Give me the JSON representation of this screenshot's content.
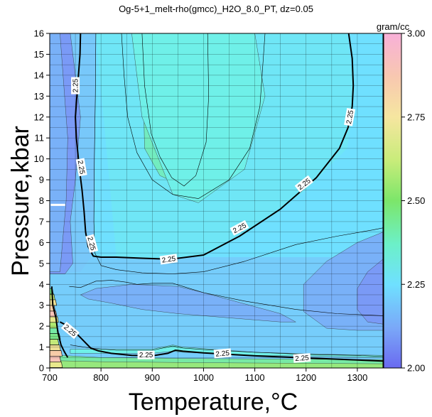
{
  "chart_data": {
    "type": "heatmap",
    "title": "Og-5+1_melt-rho(gmcc)_H2O_8.0_PT, dz=0.05",
    "xlabel": "Temperature,°C",
    "ylabel": "Pressure,kbar",
    "xlim": [
      700,
      1350
    ],
    "ylim": [
      0,
      16
    ],
    "xticks": [
      700,
      800,
      900,
      1000,
      1100,
      1200,
      1300
    ],
    "yticks": [
      0,
      1,
      2,
      3,
      4,
      5,
      6,
      7,
      8,
      9,
      10,
      11,
      12,
      13,
      14,
      15,
      16
    ],
    "grid": true,
    "colorbar": {
      "label": "gram/cc",
      "range": [
        2.0,
        3.0
      ],
      "ticks": [
        2.0,
        2.25,
        2.5,
        2.75,
        3.0
      ],
      "tick_labels": [
        "2.00",
        "2.25",
        "2.50",
        "2.75",
        "3.00"
      ]
    },
    "contour_interval": 0.05,
    "highlighted_contour": 2.25,
    "contour_label_text": "2.25",
    "regions": [
      {
        "level": 2.1,
        "x": [
          700,
          740,
          760,
          750,
          740,
          745,
          730,
          700
        ],
        "y": [
          16,
          16,
          12,
          9,
          7,
          5,
          4.5,
          4.5
        ]
      },
      {
        "level": 2.15,
        "x": [
          700,
          720,
          735,
          732,
          720,
          700
        ],
        "y": [
          16,
          16,
          11,
          8,
          4.6,
          4.6
        ]
      },
      {
        "level": 2.35,
        "x": [
          880,
          910,
          925,
          960,
          990,
          1010,
          985,
          960,
          915,
          885,
          880
        ],
        "y": [
          16,
          16,
          15,
          14,
          12,
          10,
          8.6,
          8.7,
          9.2,
          10.5,
          16
        ]
      },
      {
        "level": 2.3,
        "x": [
          840,
          860,
          880,
          940,
          990,
          1080,
          1120,
          1100,
          1040,
          970,
          900,
          850,
          840
        ],
        "y": [
          16,
          16,
          12,
          8.3,
          7.9,
          9.5,
          13,
          16,
          16,
          16,
          16,
          16,
          16
        ]
      },
      {
        "level": 2.15,
        "x": [
          1350,
          1300,
          1240,
          1195,
          1195,
          1240,
          1300,
          1350
        ],
        "y": [
          6.5,
          6,
          5.1,
          4,
          2.7,
          1.9,
          1.8,
          1.8
        ]
      },
      {
        "level": 2.1,
        "x": [
          1350,
          1320,
          1300,
          1300,
          1320,
          1350
        ],
        "y": [
          5.2,
          4.6,
          3.8,
          2.8,
          2.2,
          2.1
        ]
      },
      {
        "level": 2.15,
        "x": [
          760,
          790,
          860,
          950,
          1000,
          1090,
          1150,
          1180,
          1150,
          1050,
          950,
          880,
          820,
          775,
          760
        ],
        "y": [
          3.5,
          3.8,
          4.0,
          3.9,
          3.6,
          3.0,
          2.6,
          2.2,
          2.2,
          2.4,
          2.6,
          2.8,
          3.1,
          3.3,
          3.5
        ]
      },
      {
        "level": 2.3,
        "x": [
          740,
          800,
          900,
          940,
          960,
          1100,
          1250,
          1350,
          1350,
          1250,
          1100,
          960,
          940,
          900,
          800,
          740
        ],
        "y": [
          0.9,
          0.9,
          0.9,
          1.1,
          1.0,
          0.75,
          0.65,
          0.6,
          0.5,
          0.55,
          0.6,
          0.75,
          0.8,
          0.7,
          0.7,
          0.7
        ]
      },
      {
        "level": 2.4,
        "x": [
          720,
          800,
          1000,
          1350,
          1350,
          1000,
          800,
          720
        ],
        "y": [
          0.6,
          0.5,
          0.45,
          0.4,
          0,
          0,
          0,
          0
        ]
      },
      {
        "level": 2.5,
        "x": [
          710,
          800,
          1000,
          1350,
          1350,
          710
        ],
        "y": [
          0.35,
          0.3,
          0.25,
          0.2,
          0,
          0
        ]
      }
    ],
    "contour_lines": [
      {
        "level": 2.25,
        "highlight": true,
        "x": [
          760,
          759,
          756,
          753,
          750,
          752,
          758,
          763,
          767,
          770,
          775,
          785,
          800,
          830,
          880,
          935,
          1000,
          1070,
          1150,
          1220,
          1265,
          1282,
          1290,
          1292,
          1290,
          1283
        ],
        "y": [
          16,
          15,
          14,
          13,
          12,
          11,
          9.5,
          8.5,
          7.5,
          6.5,
          5.8,
          5.35,
          5.3,
          5.3,
          5.25,
          5.2,
          5.4,
          6.3,
          7.6,
          9.1,
          10.5,
          11.5,
          12.5,
          13.5,
          14.8,
          16
        ]
      },
      {
        "level": 2.25,
        "highlight": true,
        "x": [
          720,
          740,
          760,
          780,
          795,
          820,
          860,
          900,
          930,
          945,
          960,
          1000,
          1100,
          1200,
          1300,
          1350
        ],
        "y": [
          2.2,
          1.95,
          1.45,
          0.95,
          0.82,
          0.7,
          0.6,
          0.58,
          0.7,
          0.85,
          0.8,
          0.72,
          0.58,
          0.48,
          0.38,
          0.33
        ]
      },
      {
        "level": 2.2,
        "highlight": false,
        "x": [
          790,
          789,
          787,
          786,
          788,
          800,
          830,
          880,
          940,
          1000,
          1080,
          1180,
          1260,
          1330,
          1350
        ],
        "y": [
          16,
          13,
          10,
          7,
          5.5,
          4.9,
          4.7,
          4.55,
          4.5,
          4.6,
          5.1,
          5.9,
          6.3,
          6.6,
          6.7
        ]
      },
      {
        "level": 2.2,
        "highlight": false,
        "x": [
          738,
          760,
          790,
          820,
          850,
          870,
          900,
          940,
          960,
          1000,
          1080,
          1180,
          1260,
          1350
        ],
        "y": [
          3.9,
          3.85,
          4.15,
          4.2,
          4.1,
          4.0,
          4.05,
          4.05,
          3.9,
          3.6,
          3.2,
          2.8,
          2.6,
          2.5
        ]
      },
      {
        "level": 2.3,
        "highlight": false,
        "x": [
          840,
          845,
          852,
          870,
          900,
          940,
          990,
          1050,
          1090,
          1110,
          1120
        ],
        "y": [
          16,
          14,
          12,
          10.3,
          9.0,
          8.3,
          8.1,
          9.0,
          10.5,
          12.5,
          16
        ]
      },
      {
        "level": 2.35,
        "highlight": false,
        "x": [
          880,
          885,
          898,
          915,
          938,
          962,
          985,
          1005,
          1010,
          1008
        ],
        "y": [
          16,
          13.5,
          11.2,
          10.1,
          9.1,
          8.7,
          9.2,
          10.8,
          13,
          16
        ]
      },
      {
        "level": 2.3,
        "highlight": false,
        "x": [
          740,
          780,
          830,
          900,
          940,
          960,
          1000,
          1100,
          1200,
          1300,
          1350
        ],
        "y": [
          1.1,
          0.95,
          0.85,
          0.85,
          1.05,
          0.95,
          0.88,
          0.75,
          0.65,
          0.6,
          0.55
        ]
      }
    ],
    "contour_labels": [
      {
        "level": "2.25",
        "x": 750,
        "y": 13.5,
        "angle": -90
      },
      {
        "level": "2.25",
        "x": 762,
        "y": 9.6,
        "angle": 80
      },
      {
        "level": "2.25",
        "x": 782,
        "y": 5.95,
        "angle": 75
      },
      {
        "level": "2.25",
        "x": 932,
        "y": 5.2,
        "angle": -8
      },
      {
        "level": "2.25",
        "x": 1070,
        "y": 6.7,
        "angle": -28
      },
      {
        "level": "2.25",
        "x": 1196,
        "y": 8.8,
        "angle": -38
      },
      {
        "level": "2.25",
        "x": 1285,
        "y": 12.0,
        "angle": -80
      },
      {
        "level": "2.25",
        "x": 740,
        "y": 1.8,
        "angle": 40
      },
      {
        "level": "2.25",
        "x": 888,
        "y": 0.62,
        "angle": 0
      },
      {
        "level": "2.25",
        "x": 1037,
        "y": 0.7,
        "angle": -5
      },
      {
        "level": "2.25",
        "x": 1192,
        "y": 0.48,
        "angle": -4
      }
    ]
  }
}
